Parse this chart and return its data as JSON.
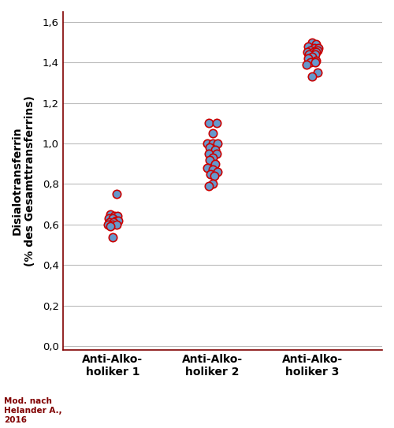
{
  "group1_x": [
    1,
    1,
    1,
    1,
    1,
    1,
    1,
    1,
    1,
    1,
    1,
    1,
    1,
    1,
    1
  ],
  "group1_y": [
    0.75,
    0.65,
    0.64,
    0.64,
    0.63,
    0.63,
    0.62,
    0.62,
    0.61,
    0.61,
    0.6,
    0.6,
    0.6,
    0.59,
    0.535
  ],
  "group1_jitter": [
    0.04,
    -0.02,
    0.02,
    0.05,
    -0.04,
    0.0,
    0.03,
    0.06,
    -0.03,
    0.01,
    -0.05,
    0.0,
    0.04,
    -0.02,
    0.0
  ],
  "group2_x": [
    2,
    2,
    2,
    2,
    2,
    2,
    2,
    2,
    2,
    2,
    2,
    2,
    2,
    2,
    2,
    2,
    2,
    2,
    2,
    2
  ],
  "group2_y": [
    1.1,
    1.1,
    1.05,
    1.0,
    1.0,
    1.0,
    0.98,
    0.97,
    0.95,
    0.95,
    0.93,
    0.92,
    0.9,
    0.88,
    0.87,
    0.86,
    0.85,
    0.84,
    0.8,
    0.79
  ],
  "group2_jitter": [
    -0.04,
    0.04,
    0.0,
    -0.05,
    0.0,
    0.05,
    -0.03,
    0.03,
    -0.04,
    0.04,
    0.0,
    -0.03,
    0.03,
    -0.05,
    0.0,
    0.05,
    -0.02,
    0.02,
    0.0,
    -0.04
  ],
  "group3_x": [
    3,
    3,
    3,
    3,
    3,
    3,
    3,
    3,
    3,
    3,
    3,
    3,
    3,
    3,
    3,
    3,
    3,
    3,
    3,
    3
  ],
  "group3_y": [
    1.5,
    1.49,
    1.48,
    1.47,
    1.47,
    1.46,
    1.46,
    1.45,
    1.45,
    1.45,
    1.44,
    1.44,
    1.43,
    1.42,
    1.41,
    1.4,
    1.4,
    1.39,
    1.35,
    1.33
  ],
  "group3_jitter": [
    0.0,
    0.04,
    -0.04,
    0.02,
    0.06,
    -0.02,
    0.05,
    -0.05,
    0.01,
    0.04,
    -0.03,
    0.03,
    0.0,
    -0.04,
    0.04,
    -0.02,
    0.03,
    -0.06,
    0.05,
    0.0
  ],
  "marker_color": "#6699cc",
  "edge_color": "#cc0000",
  "marker_size": 56,
  "edge_width": 1.2,
  "ylabel": "Disialotransferrin\n(% des Gesamttransferrins)",
  "yticks": [
    0.0,
    0.2,
    0.4,
    0.6,
    0.8,
    1.0,
    1.2,
    1.4,
    1.6
  ],
  "ylim": [
    -0.02,
    1.65
  ],
  "xtick_labels": [
    "Anti-Alko-\nholiker 1",
    "Anti-Alko-\nholiker 2",
    "Anti-Alko-\nholiker 3"
  ],
  "grid_color": "#bbbbbb",
  "background_color": "#ffffff",
  "spine_color": "#800000",
  "note_text": "Mod. nach\nHelander A.,\n2016",
  "note_color": "#800000",
  "note_fontsize": 7.5,
  "ylabel_fontsize": 10,
  "xlabel_fontsize": 10,
  "tick_fontsize": 9.5
}
